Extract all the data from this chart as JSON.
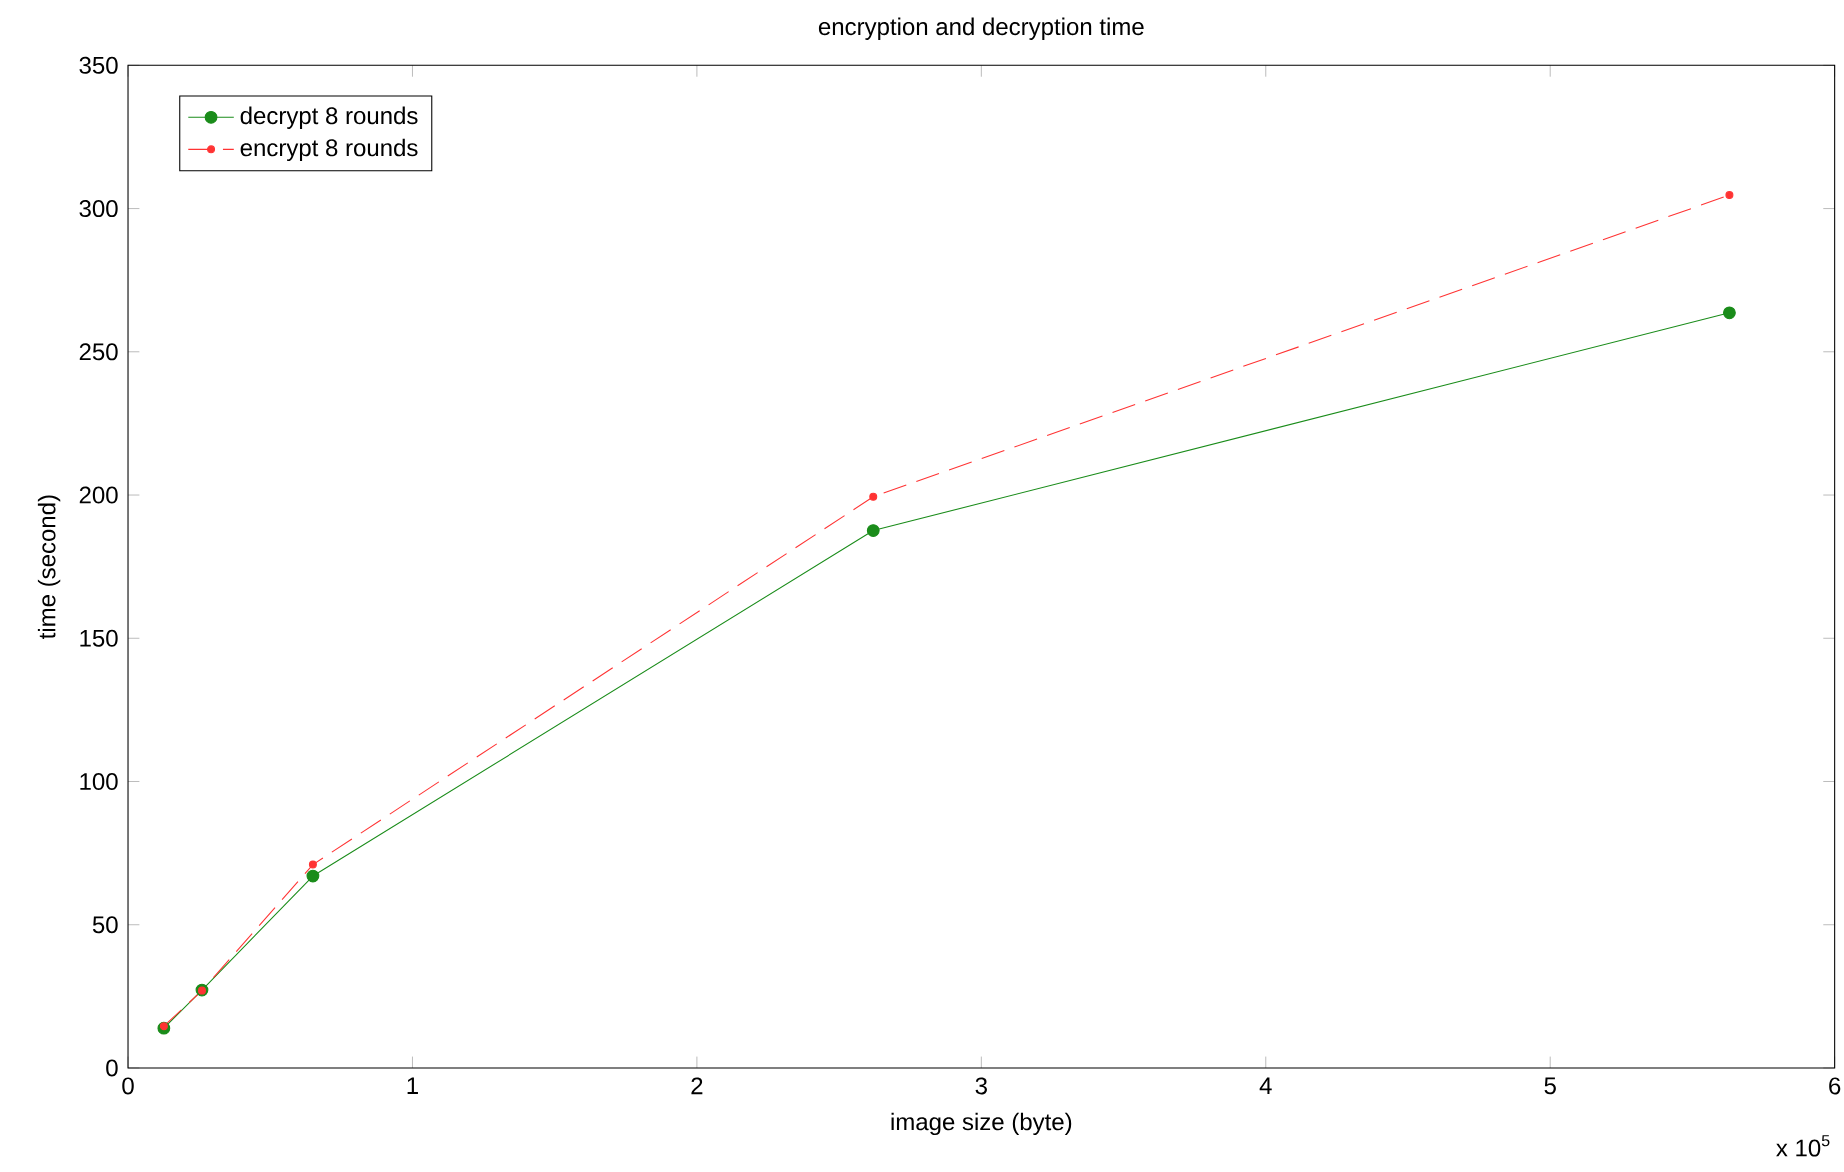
{
  "chart_data": {
    "type": "line",
    "title": "encryption and decryption time",
    "xlabel": "image size (byte)",
    "ylabel": "time (second)",
    "annotations": [
      "x 10$^{5}$"
    ],
    "xlim": [
      0,
      6
    ],
    "xticks": [
      0,
      1,
      2,
      3,
      4,
      5,
      6
    ],
    "ylim": [
      0,
      350
    ],
    "yticks": [
      0,
      50,
      100,
      150,
      200,
      250,
      300,
      350
    ],
    "grid": false,
    "legend": "top left",
    "marker": "circle",
    "series": [
      {
        "name": "decrypt 8 rounds",
        "color": "#1a8c1a",
        "line_style": "solid",
        "x": [
          0.126,
          0.26,
          0.65,
          2.62,
          5.63
        ],
        "values": [
          13.9,
          27.2,
          67,
          187.6,
          263.6
        ]
      },
      {
        "name": "encrypt 8 rounds",
        "color": "#ff3333",
        "line_style": "dashed",
        "x": [
          0.126,
          0.26,
          0.65,
          2.62,
          5.63
        ],
        "values": [
          14.6,
          27,
          71,
          199.4,
          304.7
        ]
      }
    ]
  }
}
